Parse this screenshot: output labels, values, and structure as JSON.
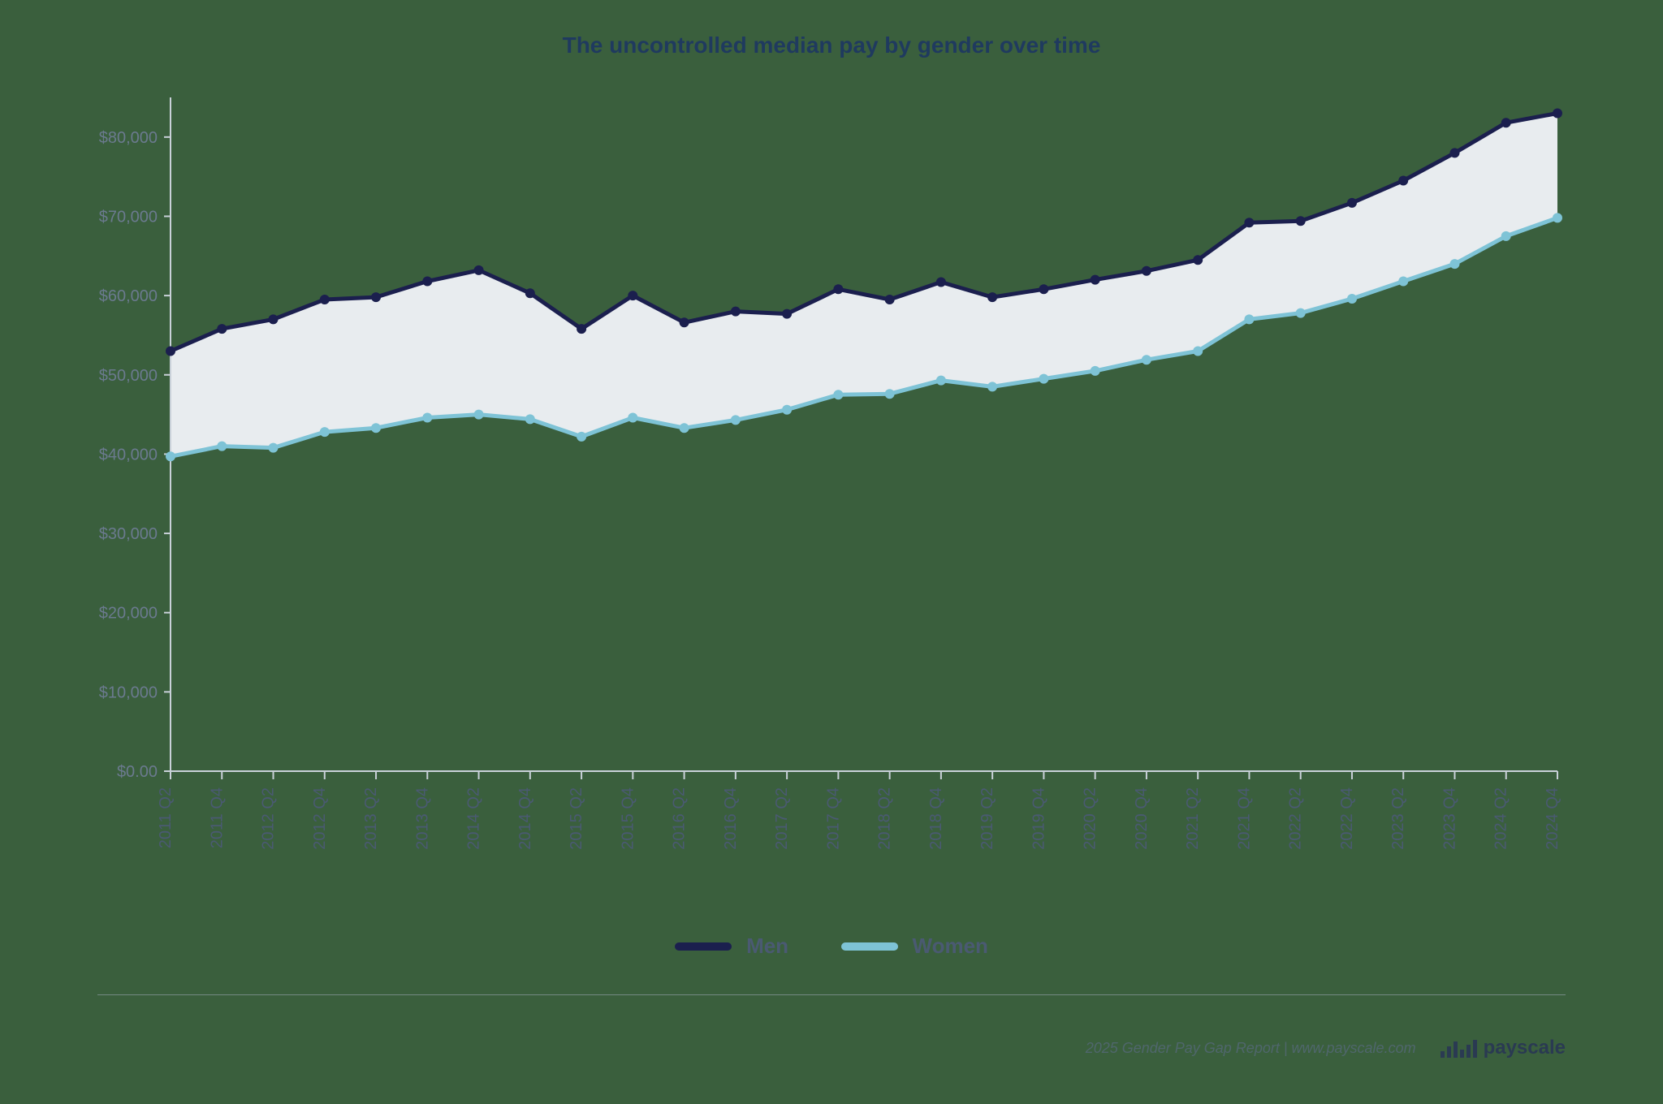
{
  "chart": {
    "type": "line-area-between",
    "title": "The uncontrolled median pay by gender over time",
    "title_fontsize": 28,
    "title_color": "#1f3a5f",
    "background_color": "#3a5f3d",
    "plot_background": "transparent",
    "area_fill": "#e8ecef",
    "area_fill_opacity": 1.0,
    "ylabel_color": "#6b7a8f",
    "xlabel_color": "#4a5a72",
    "label_fontsize": 20,
    "ylim": [
      0,
      85000
    ],
    "yticks": [
      0,
      10000,
      20000,
      30000,
      40000,
      50000,
      60000,
      70000,
      80000
    ],
    "ytick_labels": [
      "$0.00",
      "$10,000",
      "$20,000",
      "$30,000",
      "$40,000",
      "$50,000",
      "$60,000",
      "$70,000",
      "$80,000"
    ],
    "axis_line_color": "#c9d1d9",
    "tick_color": "#c9d1d9",
    "grid": false,
    "line_width": 5,
    "marker_radius": 6,
    "categories": [
      "2011 Q2",
      "2011 Q4",
      "2012 Q2",
      "2012 Q4",
      "2013 Q2",
      "2013 Q4",
      "2014 Q2",
      "2014 Q4",
      "2015 Q2",
      "2015 Q4",
      "2016 Q2",
      "2016 Q4",
      "2017 Q2",
      "2017 Q4",
      "2018 Q2",
      "2018 Q4",
      "2019 Q2",
      "2019 Q4",
      "2020 Q2",
      "2020 Q4",
      "2021 Q2",
      "2021 Q4",
      "2022 Q2",
      "2022 Q4",
      "2023 Q2",
      "2023 Q4",
      "2024 Q2",
      "2024 Q4"
    ],
    "series": [
      {
        "name": "Men",
        "color": "#1b1f4e",
        "values": [
          53000,
          55800,
          57000,
          59500,
          59800,
          61800,
          63200,
          60300,
          55800,
          60000,
          56600,
          58000,
          57700,
          60800,
          59500,
          61700,
          59800,
          60800,
          62000,
          63100,
          64500,
          69200,
          69400,
          71700,
          74500,
          78000,
          81800,
          83000
        ]
      },
      {
        "name": "Women",
        "color": "#7ec3d6",
        "values": [
          39700,
          41000,
          40800,
          42800,
          43300,
          44600,
          45000,
          44400,
          42200,
          44600,
          43300,
          44300,
          45600,
          47500,
          47600,
          49300,
          48500,
          49500,
          50500,
          51900,
          53000,
          57000,
          57800,
          59600,
          61800,
          64000,
          67500,
          69800
        ]
      }
    ],
    "legend": {
      "items": [
        {
          "label": "Men",
          "color": "#1b1f4e"
        },
        {
          "label": "Women",
          "color": "#7ec3d6"
        }
      ],
      "fontsize": 26,
      "label_color": "#4a5a72"
    }
  },
  "footer": {
    "text": "2025 Gender Pay Gap Report  |  www.payscale.com",
    "brand": "payscale",
    "line_color": "#9aa5b1",
    "text_color": "#596a80"
  }
}
